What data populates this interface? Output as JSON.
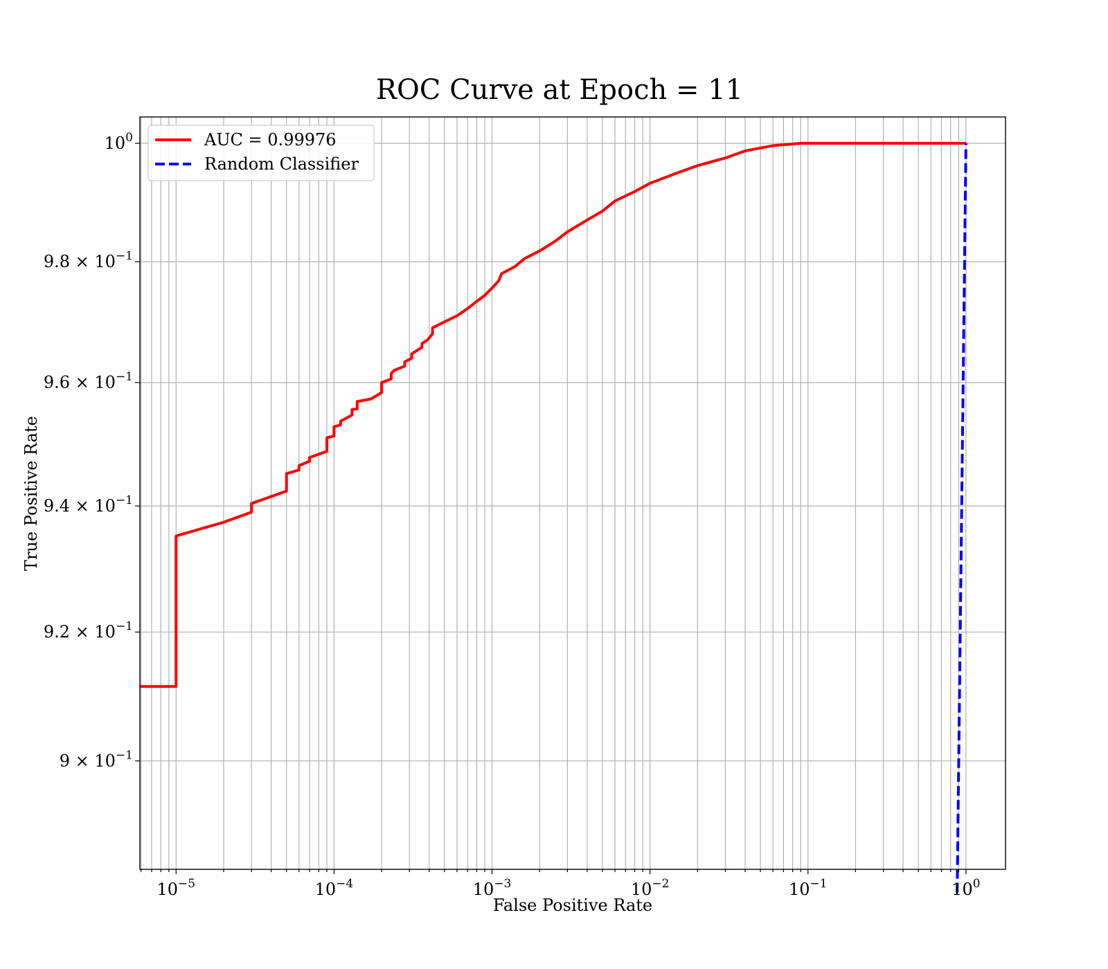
{
  "chart_data": {
    "type": "line",
    "title": "ROC Curve at Epoch = 11",
    "xlabel": "False Positive Rate",
    "ylabel": "True Positive Rate",
    "x_scale": "log",
    "y_scale": "log",
    "xlim": [
      5.9e-06,
      1.78
    ],
    "ylim": [
      0.8835,
      1.0045
    ],
    "grid": true,
    "legend_position": "top-left",
    "x_ticks": [
      {
        "value": 1e-05,
        "mantissa": "",
        "base": "10",
        "exp": "−5"
      },
      {
        "value": 0.0001,
        "mantissa": "",
        "base": "10",
        "exp": "−4"
      },
      {
        "value": 0.001,
        "mantissa": "",
        "base": "10",
        "exp": "−3"
      },
      {
        "value": 0.01,
        "mantissa": "",
        "base": "10",
        "exp": "−2"
      },
      {
        "value": 0.1,
        "mantissa": "",
        "base": "10",
        "exp": "−1"
      },
      {
        "value": 1,
        "mantissa": "",
        "base": "10",
        "exp": "0"
      }
    ],
    "y_ticks": [
      {
        "value": 1.0,
        "mantissa": "",
        "base": "10",
        "exp": "0"
      },
      {
        "value": 0.98,
        "mantissa": "9.8 × ",
        "base": "10",
        "exp": "−1"
      },
      {
        "value": 0.96,
        "mantissa": "9.6 × ",
        "base": "10",
        "exp": "−1"
      },
      {
        "value": 0.94,
        "mantissa": "9.4 × ",
        "base": "10",
        "exp": "−1"
      },
      {
        "value": 0.92,
        "mantissa": "9.2 × ",
        "base": "10",
        "exp": "−1"
      },
      {
        "value": 0.9,
        "mantissa": "9 × ",
        "base": "10",
        "exp": "−1"
      }
    ],
    "series": [
      {
        "name": "AUC = 0.99976",
        "color": "#ff0000",
        "style": "solid",
        "points": [
          [
            5.9e-06,
            0.9115
          ],
          [
            1e-05,
            0.9115
          ],
          [
            1e-05,
            0.9352
          ],
          [
            2e-05,
            0.9374
          ],
          [
            3e-05,
            0.939
          ],
          [
            3e-05,
            0.9404
          ],
          [
            5e-05,
            0.9424
          ],
          [
            5e-05,
            0.9452
          ],
          [
            6e-05,
            0.9458
          ],
          [
            6e-05,
            0.9465
          ],
          [
            7e-05,
            0.9472
          ],
          [
            7e-05,
            0.9478
          ],
          [
            9e-05,
            0.9488
          ],
          [
            9e-05,
            0.951
          ],
          [
            0.0001,
            0.9513
          ],
          [
            0.0001,
            0.9528
          ],
          [
            0.00011,
            0.9531
          ],
          [
            0.00011,
            0.9537
          ],
          [
            0.00013,
            0.9547
          ],
          [
            0.00013,
            0.9556
          ],
          [
            0.00014,
            0.9557
          ],
          [
            0.00014,
            0.9569
          ],
          [
            0.00017,
            0.9573
          ],
          [
            0.00019,
            0.958
          ],
          [
            0.0002,
            0.9584
          ],
          [
            0.0002,
            0.96
          ],
          [
            0.00023,
            0.9606
          ],
          [
            0.00023,
            0.9615
          ],
          [
            0.00024,
            0.962
          ],
          [
            0.00028,
            0.9627
          ],
          [
            0.00028,
            0.9634
          ],
          [
            0.00031,
            0.964
          ],
          [
            0.00031,
            0.9647
          ],
          [
            0.00036,
            0.9658
          ],
          [
            0.00036,
            0.9664
          ],
          [
            0.00039,
            0.967
          ],
          [
            0.00042,
            0.968
          ],
          [
            0.00042,
            0.969
          ],
          [
            0.0005,
            0.97
          ],
          [
            0.0006,
            0.971
          ],
          [
            0.0007,
            0.9722
          ],
          [
            0.0008,
            0.9734
          ],
          [
            0.0009,
            0.9744
          ],
          [
            0.001,
            0.9756
          ],
          [
            0.0011,
            0.9768
          ],
          [
            0.00115,
            0.978
          ],
          [
            0.0014,
            0.9792
          ],
          [
            0.0016,
            0.9805
          ],
          [
            0.002,
            0.9818
          ],
          [
            0.0025,
            0.9834
          ],
          [
            0.003,
            0.985
          ],
          [
            0.004,
            0.987
          ],
          [
            0.005,
            0.9885
          ],
          [
            0.006,
            0.9902
          ],
          [
            0.008,
            0.9918
          ],
          [
            0.01,
            0.9932
          ],
          [
            0.015,
            0.995
          ],
          [
            0.02,
            0.9962
          ],
          [
            0.03,
            0.9975
          ],
          [
            0.04,
            0.9987
          ],
          [
            0.06,
            0.9996
          ],
          [
            0.09,
            1.0
          ],
          [
            1.0,
            1.0
          ]
        ]
      },
      {
        "name": "Random Classifier",
        "color": "#0000ff",
        "style": "dashed",
        "points": [
          [
            0.88,
            0.88
          ],
          [
            1.0,
            1.0
          ]
        ]
      }
    ]
  }
}
